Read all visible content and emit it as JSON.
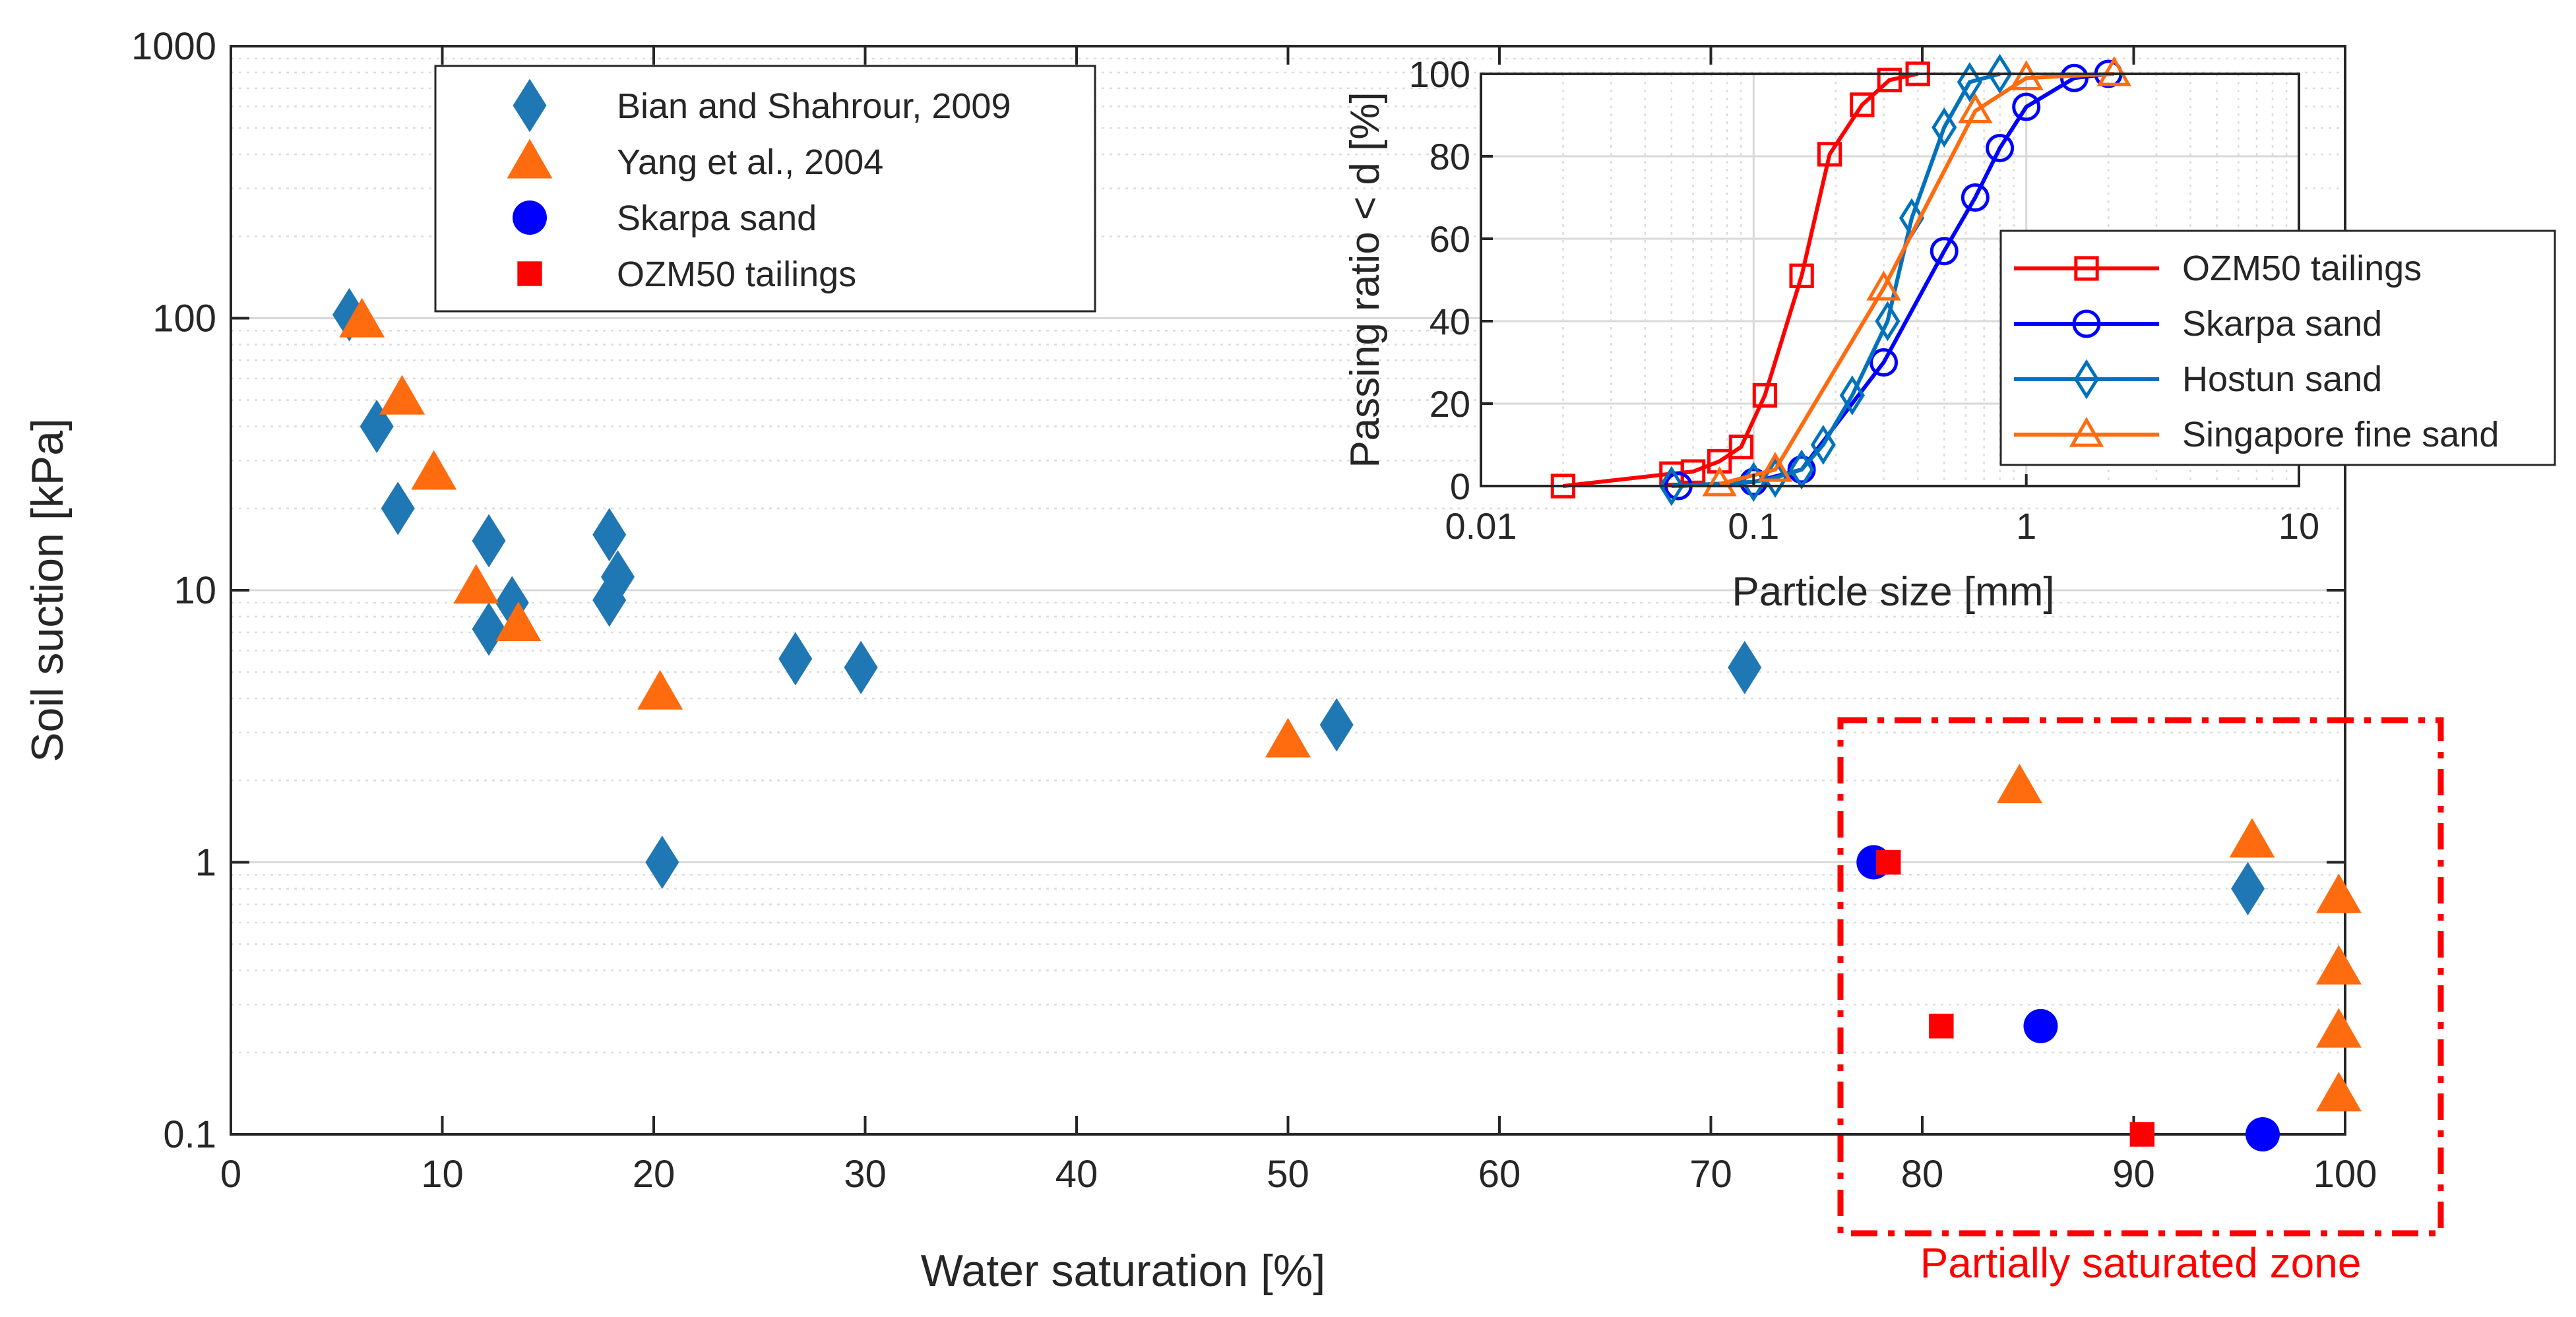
{
  "chart_data": [
    {
      "type": "scatter",
      "xlabel": "Water saturation [%]",
      "ylabel": "Soil suction [kPa]",
      "xlim": [
        0,
        100
      ],
      "ylim": [
        0.1,
        1000
      ],
      "yscale": "log",
      "grid": true,
      "legend_position": "top-left",
      "xticks": [
        "0",
        "10",
        "20",
        "30",
        "40",
        "50",
        "60",
        "70",
        "80",
        "90",
        "100"
      ],
      "yticks": [
        "0.1",
        "1",
        "10",
        "100",
        "1000"
      ],
      "series": [
        {
          "name": "Bian and Shahrour, 2009",
          "marker": "diamond",
          "color": "#1f77b4",
          "points": [
            [
              5.6,
              103
            ],
            [
              6.9,
              40
            ],
            [
              7.9,
              20
            ],
            [
              12.2,
              15.2
            ],
            [
              12.2,
              7.2
            ],
            [
              13.3,
              9.0
            ],
            [
              17.9,
              16.0
            ],
            [
              17.9,
              9.2
            ],
            [
              18.3,
              11.2
            ],
            [
              20.4,
              1.0
            ],
            [
              26.7,
              5.6
            ],
            [
              29.8,
              5.2
            ],
            [
              52.3,
              3.2
            ],
            [
              71.6,
              5.2
            ],
            [
              95.4,
              0.8
            ]
          ]
        },
        {
          "name": "Yang et al., 2004",
          "marker": "triangle",
          "color": "#ff6b0f",
          "points": [
            [
              6.2,
              98
            ],
            [
              8.1,
              51
            ],
            [
              9.6,
              27
            ],
            [
              11.6,
              10.3
            ],
            [
              13.6,
              7.5
            ],
            [
              20.3,
              4.2
            ],
            [
              50.0,
              2.8
            ],
            [
              84.6,
              1.9
            ],
            [
              95.6,
              1.2
            ],
            [
              99.7,
              0.75
            ],
            [
              99.7,
              0.41
            ],
            [
              99.7,
              0.24
            ],
            [
              99.7,
              0.14
            ]
          ]
        },
        {
          "name": "Skarpa sand",
          "marker": "circle",
          "color": "#0000ff",
          "points": [
            [
              77.7,
              1.0
            ],
            [
              85.6,
              0.25
            ],
            [
              96.1,
              0.1
            ]
          ]
        },
        {
          "name": "OZM50 tailings",
          "marker": "square",
          "color": "#ff0000",
          "points": [
            [
              78.4,
              1.0
            ],
            [
              80.9,
              0.25
            ],
            [
              90.4,
              0.1
            ]
          ]
        }
      ],
      "annotations": [
        {
          "text": "Partially saturated zone",
          "color": "#ff0000",
          "x_range": [
            76,
            100
          ],
          "y_range": [
            0.1,
            3.3
          ]
        }
      ]
    },
    {
      "type": "line",
      "xlabel": "Particle size [mm]",
      "ylabel": "Passing ratio < d [%]",
      "xlim": [
        0.01,
        10
      ],
      "ylim": [
        0,
        100
      ],
      "xscale": "log",
      "grid": true,
      "legend_position": "right",
      "xticks": [
        "0.01",
        "0.1",
        "1",
        "10"
      ],
      "yticks": [
        "0",
        "20",
        "40",
        "60",
        "80",
        "100"
      ],
      "series": [
        {
          "name": "OZM50 tailings",
          "marker": "square-open",
          "color": "#ff0000",
          "points": [
            [
              0.02,
              0
            ],
            [
              0.05,
              3
            ],
            [
              0.06,
              3.5
            ],
            [
              0.075,
              6
            ],
            [
              0.09,
              9.5
            ],
            [
              0.11,
              22
            ],
            [
              0.15,
              51
            ],
            [
              0.19,
              80.5
            ],
            [
              0.25,
              92.5
            ],
            [
              0.315,
              98.5
            ],
            [
              0.4,
              100
            ]
          ]
        },
        {
          "name": "Skarpa sand",
          "marker": "circle-open",
          "color": "#0000ff",
          "points": [
            [
              0.053,
              0
            ],
            [
              0.1,
              1
            ],
            [
              0.15,
              4
            ],
            [
              0.3,
              30
            ],
            [
              0.5,
              57
            ],
            [
              0.65,
              70
            ],
            [
              0.8,
              82
            ],
            [
              1.0,
              92
            ],
            [
              1.5,
              99
            ],
            [
              2.0,
              100
            ]
          ]
        },
        {
          "name": "Hostun sand",
          "marker": "diamond-open",
          "color": "#0072bd",
          "points": [
            [
              0.05,
              0
            ],
            [
              0.1,
              1
            ],
            [
              0.12,
              2
            ],
            [
              0.15,
              4
            ],
            [
              0.18,
              10
            ],
            [
              0.23,
              22
            ],
            [
              0.31,
              40
            ],
            [
              0.38,
              65
            ],
            [
              0.5,
              87
            ],
            [
              0.62,
              98
            ],
            [
              0.8,
              100
            ]
          ]
        },
        {
          "name": "Singapore fine sand",
          "marker": "triangle-open",
          "color": "#ff6b0f",
          "points": [
            [
              0.075,
              0.5
            ],
            [
              0.12,
              4
            ],
            [
              0.3,
              48
            ],
            [
              0.65,
              91
            ],
            [
              1.0,
              99
            ],
            [
              2.1,
              100
            ]
          ]
        }
      ]
    }
  ]
}
